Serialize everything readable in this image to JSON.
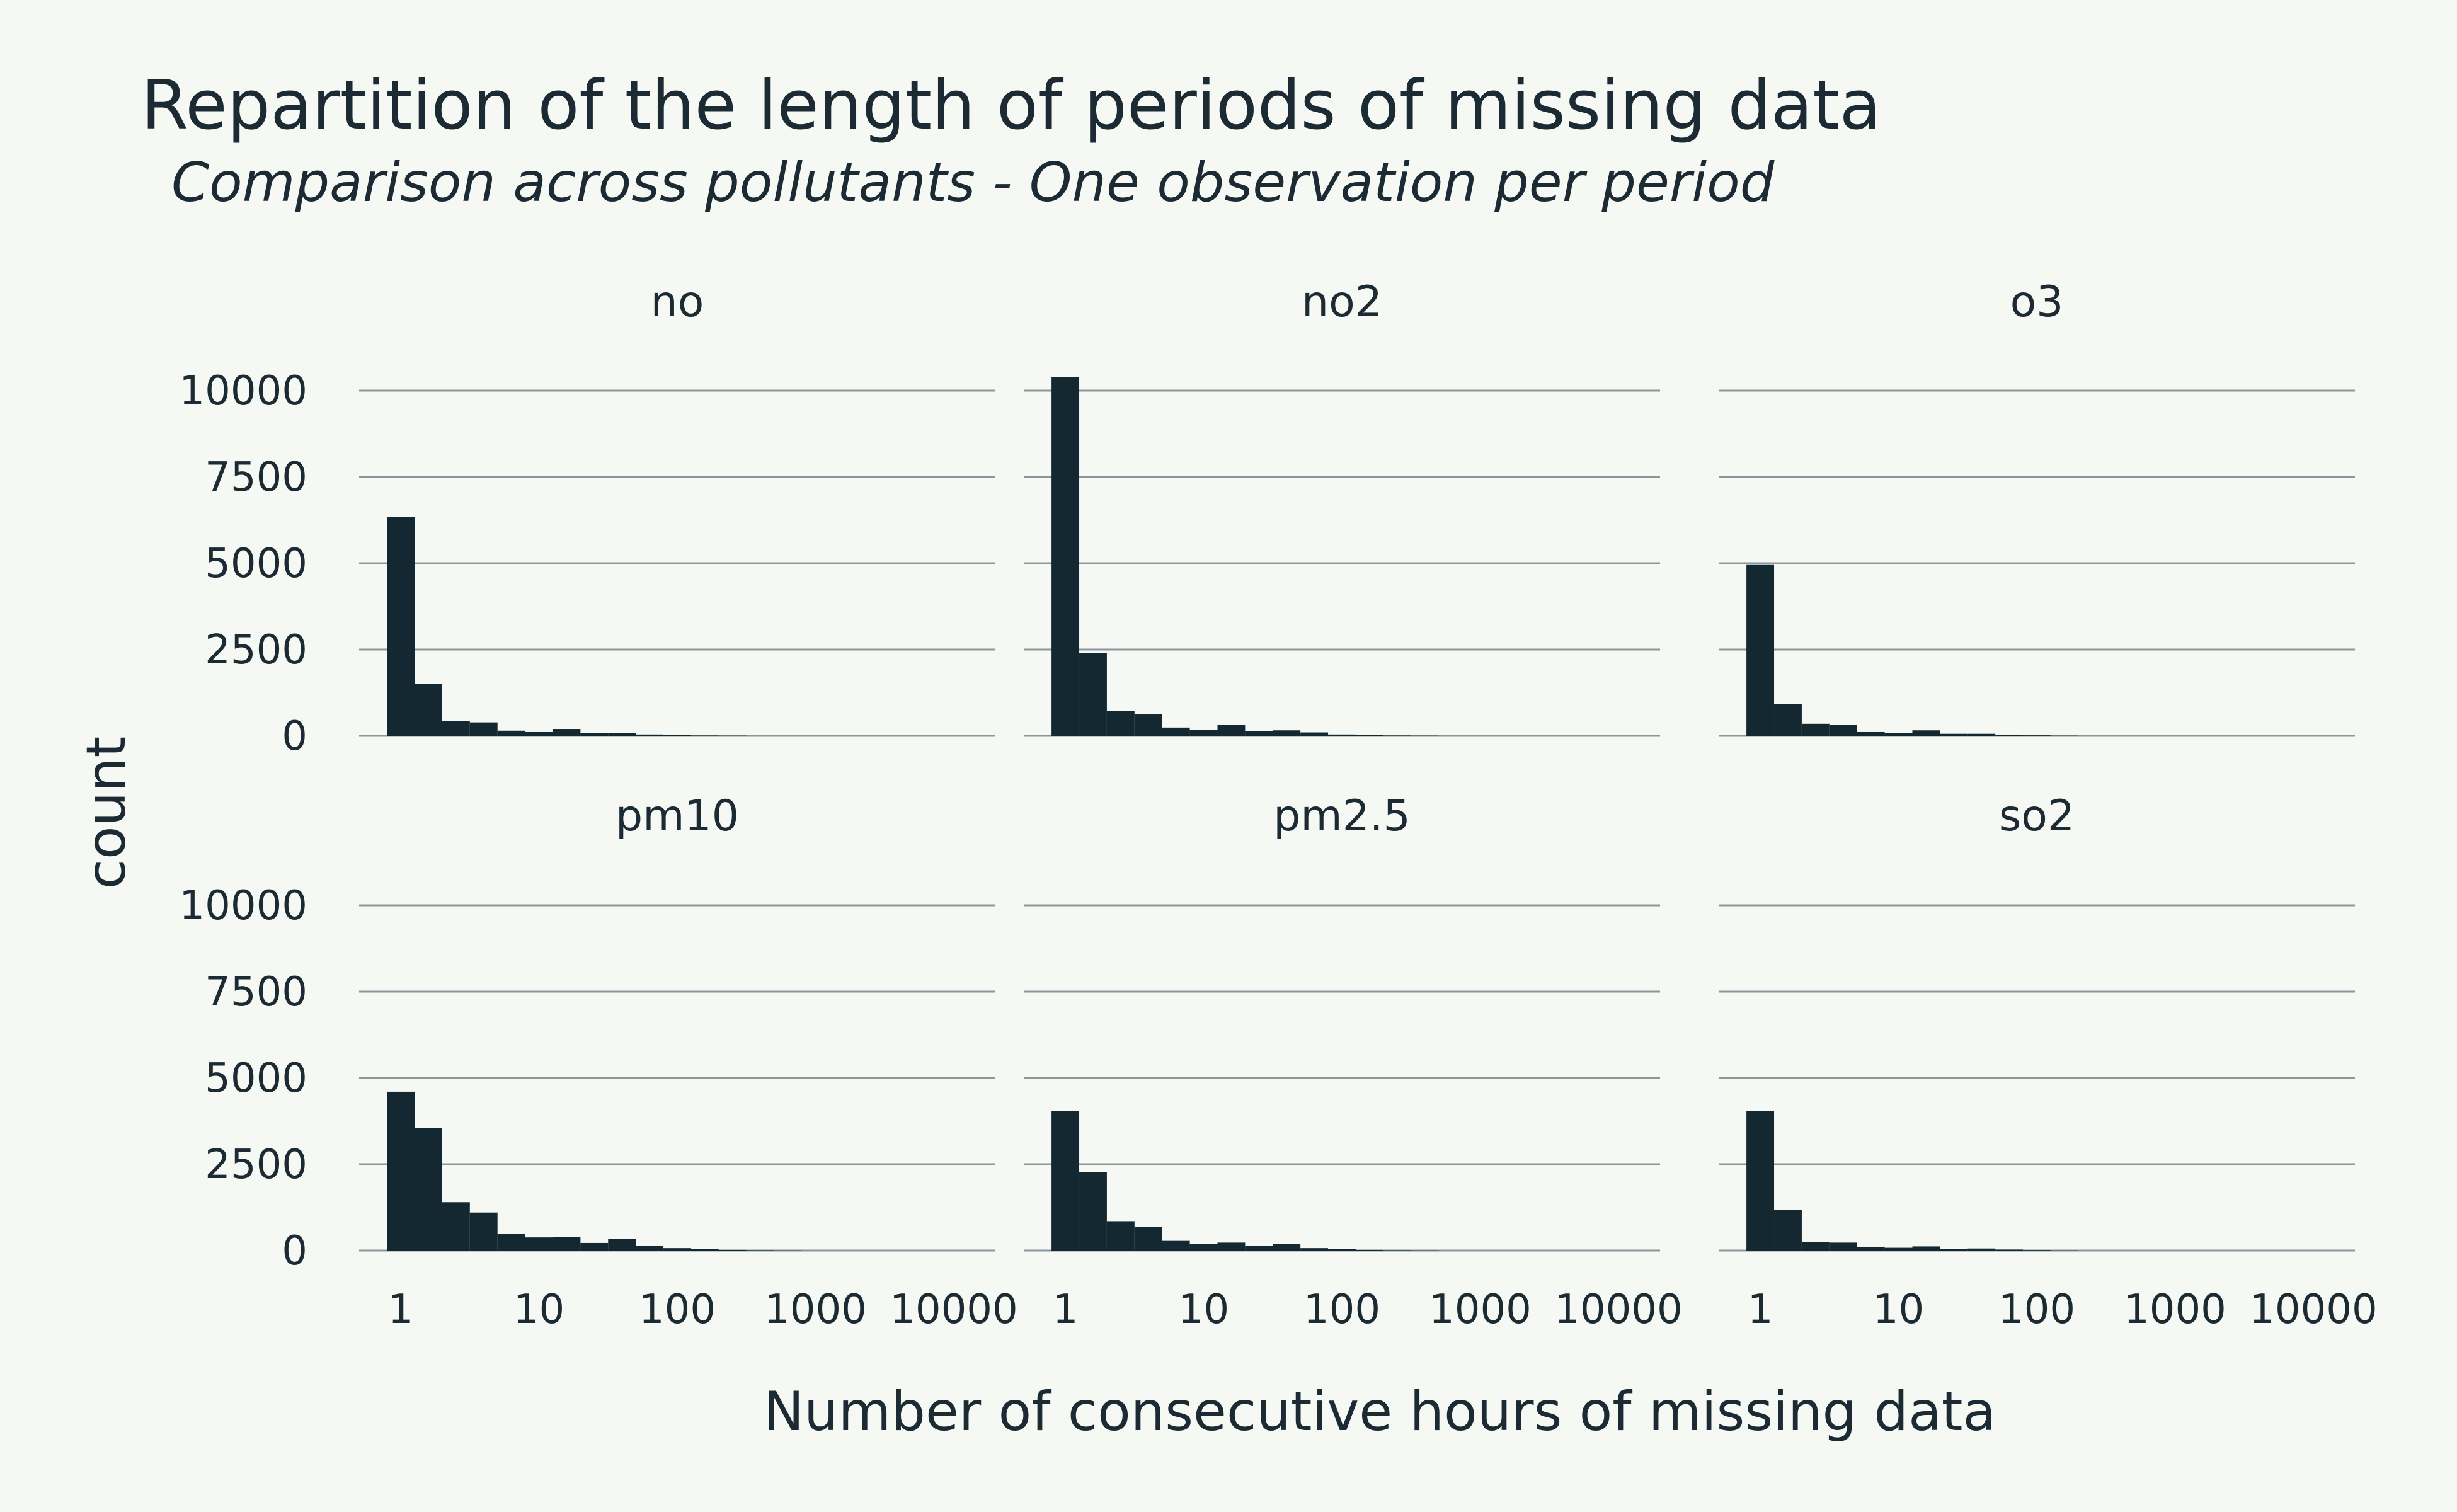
{
  "header": {
    "title": "Repartition of the length of periods of missing data",
    "subtitle": "Comparison across pollutants - One observation per period"
  },
  "chart_data": {
    "type": "bar",
    "title": "Repartition of the length of periods of missing data",
    "subtitle": "Comparison across pollutants - One observation per period",
    "xlabel": "Number of consecutive hours of missing data",
    "ylabel": "count",
    "x_scale": "log10",
    "x_bin_width_log10": 0.2,
    "xlim": [
      0.5,
      20000
    ],
    "ylim": [
      0,
      10400
    ],
    "x_ticks": [
      1,
      10,
      100,
      1000,
      10000
    ],
    "x_tick_labels": [
      "1",
      "10",
      "100",
      "1000",
      "10000"
    ],
    "y_ticks": [
      0,
      2500,
      5000,
      7500,
      10000
    ],
    "y_tick_labels": [
      "0",
      "2500",
      "5000",
      "7500",
      "10000"
    ],
    "grid": "horizontal",
    "bin_centers": [
      1,
      1.585,
      2.512,
      3.981,
      6.31,
      10,
      15.85,
      25.12,
      39.81,
      63.1,
      100,
      158.5,
      251.2,
      398.1,
      631
    ],
    "facets": [
      {
        "name": "no",
        "counts": [
          6350,
          1500,
          420,
          390,
          150,
          110,
          200,
          90,
          80,
          40,
          20,
          10,
          5,
          0,
          0
        ]
      },
      {
        "name": "no2",
        "counts": [
          10400,
          2400,
          720,
          620,
          240,
          180,
          320,
          130,
          160,
          100,
          40,
          20,
          10,
          5,
          0
        ]
      },
      {
        "name": "o3",
        "counts": [
          4950,
          920,
          350,
          310,
          110,
          80,
          160,
          60,
          60,
          30,
          15,
          5,
          0,
          0,
          0
        ]
      },
      {
        "name": "pm10",
        "counts": [
          4600,
          3550,
          1400,
          1100,
          480,
          380,
          400,
          220,
          330,
          130,
          70,
          40,
          20,
          10,
          5
        ]
      },
      {
        "name": "pm2.5",
        "counts": [
          4050,
          2280,
          850,
          680,
          280,
          190,
          230,
          140,
          200,
          70,
          40,
          20,
          10,
          5,
          0
        ]
      },
      {
        "name": "so2",
        "counts": [
          4050,
          1180,
          250,
          230,
          110,
          80,
          120,
          50,
          60,
          30,
          15,
          5,
          0,
          0,
          0
        ]
      }
    ]
  }
}
